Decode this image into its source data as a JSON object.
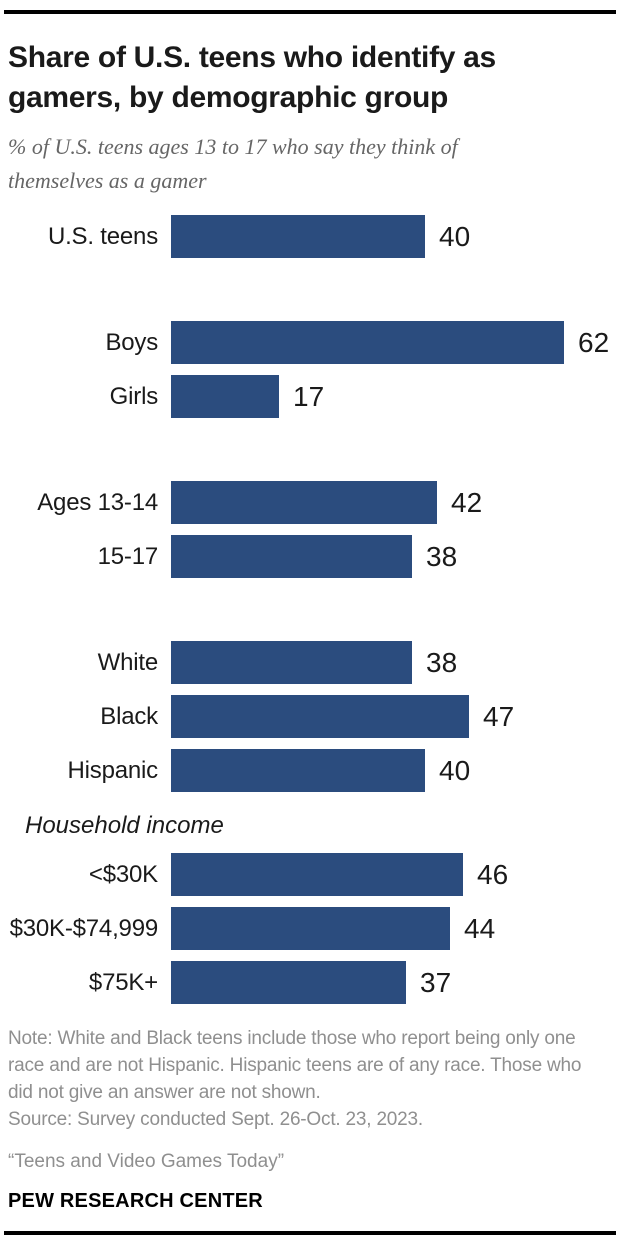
{
  "header": {
    "title": "Share of U.S. teens who identify as gamers, by demographic group",
    "subtitle": "% of U.S. teens ages 13 to 17 who say they think of themselves as a gamer"
  },
  "chart_data": {
    "type": "bar",
    "orientation": "horizontal",
    "title": "Share of U.S. teens who identify as gamers, by demographic group",
    "subtitle": "% of U.S. teens ages 13 to 17 who say they think of themselves as a gamer",
    "unit": "%",
    "xlim": [
      0,
      62
    ],
    "grid": false,
    "show_value_labels": true,
    "groups": [
      {
        "section_label": "",
        "rows": [
          {
            "category": "U.S. teens",
            "value": 40
          }
        ]
      },
      {
        "section_label": "",
        "rows": [
          {
            "category": "Boys",
            "value": 62
          },
          {
            "category": "Girls",
            "value": 17
          }
        ]
      },
      {
        "section_label": "",
        "rows": [
          {
            "category": "Ages 13-14",
            "value": 42
          },
          {
            "category": "15-17",
            "value": 38
          }
        ]
      },
      {
        "section_label": "",
        "rows": [
          {
            "category": "White",
            "value": 38
          },
          {
            "category": "Black",
            "value": 47
          },
          {
            "category": "Hispanic",
            "value": 40
          }
        ]
      },
      {
        "section_label": "Household income",
        "rows": [
          {
            "category": "<$30K",
            "value": 46
          },
          {
            "category": "$30K-$74,999",
            "value": 44
          },
          {
            "category": "$75K+",
            "value": 37
          }
        ]
      }
    ]
  },
  "colors": {
    "bar": "#2B4C7E",
    "title_text": "#1a1a1a",
    "subtitle_text": "#666666",
    "note_text": "#8f8f8f"
  },
  "footer": {
    "note": "Note: White and Black teens include those who report being only one race and are not Hispanic. Hispanic teens are of any race. Those who did not give an answer are not shown.",
    "source": "Source: Survey conducted Sept. 26-Oct. 23, 2023.",
    "report_title": "“Teens and Video Games Today”",
    "org": "PEW RESEARCH CENTER"
  }
}
